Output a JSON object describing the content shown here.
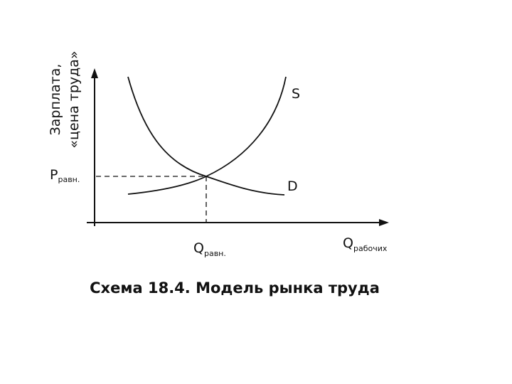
{
  "axes": {
    "y_label": [
      "Зарплата,",
      "«цена труда»"
    ],
    "x_label": {
      "main": "Q",
      "sub": "рабочих"
    }
  },
  "curves": {
    "supply": "S",
    "demand": "D"
  },
  "equilibrium": {
    "price": {
      "main": "P",
      "sub": "равн."
    },
    "quantity": {
      "main": "Q",
      "sub": "равн."
    }
  },
  "caption": "Схема 18.4. Модель рынка труда"
}
